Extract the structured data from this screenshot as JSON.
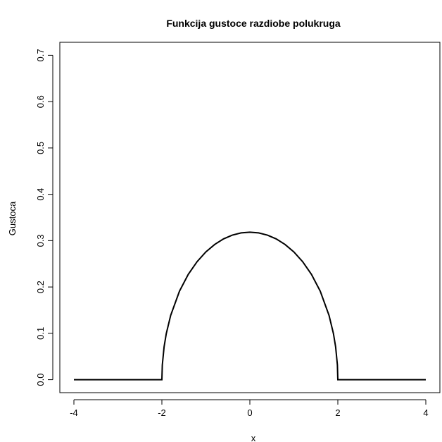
{
  "chart_data": {
    "type": "line",
    "title": "Funkcija gustoce razdiobe polukruga",
    "xlabel": "x",
    "ylabel": "Gustoca",
    "x": [
      -4,
      -2,
      -1.99,
      -1.95,
      -1.9,
      -1.8,
      -1.6,
      -1.4,
      -1.2,
      -1.0,
      -0.8,
      -0.6,
      -0.4,
      -0.2,
      0,
      0.2,
      0.4,
      0.6,
      0.8,
      1.0,
      1.2,
      1.4,
      1.6,
      1.8,
      1.9,
      1.95,
      1.99,
      2,
      4
    ],
    "values": [
      0,
      0,
      0.0318,
      0.0707,
      0.0994,
      0.1387,
      0.191,
      0.2273,
      0.2546,
      0.2757,
      0.2917,
      0.3037,
      0.3119,
      0.3167,
      0.3183,
      0.3167,
      0.3119,
      0.3037,
      0.2917,
      0.2757,
      0.2546,
      0.2273,
      0.191,
      0.1387,
      0.0994,
      0.0707,
      0.0318,
      0,
      0
    ],
    "color": "#000000",
    "xlim": [
      -4.32,
      4.32
    ],
    "ylim": [
      -0.028,
      0.728
    ],
    "xticks": [
      -4,
      -2,
      0,
      2,
      4
    ],
    "yticks": [
      {
        "value": 0,
        "label": "0.0"
      },
      {
        "value": 0.1,
        "label": "0.1"
      },
      {
        "value": 0.2,
        "label": "0.2"
      },
      {
        "value": 0.3,
        "label": "0.3"
      },
      {
        "value": 0.4,
        "label": "0.4"
      },
      {
        "value": 0.5,
        "label": "0.5"
      },
      {
        "value": 0.6,
        "label": "0.6"
      },
      {
        "value": 0.7,
        "label": "0.7"
      }
    ]
  }
}
